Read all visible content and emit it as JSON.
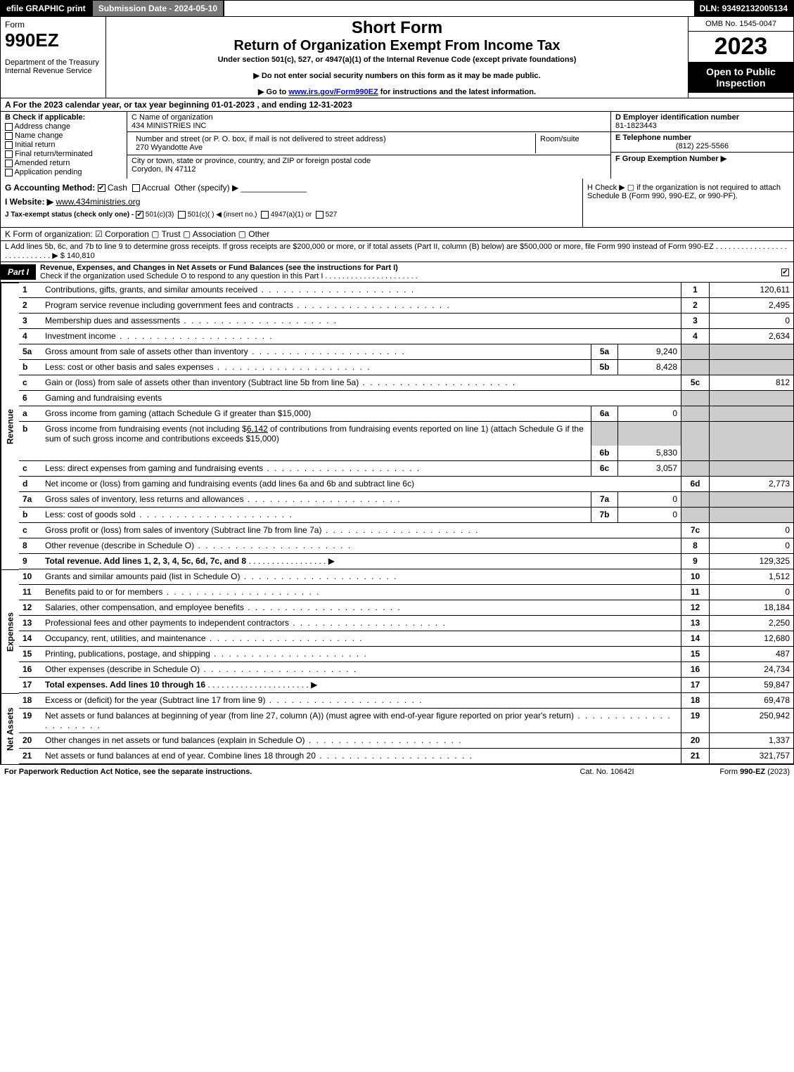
{
  "top": {
    "efile": "efile GRAPHIC print",
    "submission": "Submission Date - 2024-05-10",
    "dln": "DLN: 93492132005134"
  },
  "header": {
    "form": "Form",
    "formnum": "990EZ",
    "dept": "Department of the Treasury\nInternal Revenue Service",
    "short": "Short Form",
    "ret": "Return of Organization Exempt From Income Tax",
    "sub": "Under section 501(c), 527, or 4947(a)(1) of the Internal Revenue Code (except private foundations)",
    "arrow1": "▶ Do not enter social security numbers on this form as it may be made public.",
    "arrow2_pre": "▶ Go to ",
    "arrow2_link": "www.irs.gov/Form990EZ",
    "arrow2_post": " for instructions and the latest information.",
    "omb": "OMB No. 1545-0047",
    "year": "2023",
    "open": "Open to Public Inspection"
  },
  "A": "A  For the 2023 calendar year, or tax year beginning 01-01-2023 , and ending 12-31-2023",
  "B": {
    "title": "B  Check if applicable:",
    "items": [
      "Address change",
      "Name change",
      "Initial return",
      "Final return/terminated",
      "Amended return",
      "Application pending"
    ]
  },
  "C": {
    "label": "C Name of organization",
    "name": "434 MINISTRIES INC",
    "street_label": "Number and street (or P. O. box, if mail is not delivered to street address)",
    "street": "270 Wyandotte Ave",
    "room_label": "Room/suite",
    "city_label": "City or town, state or province, country, and ZIP or foreign postal code",
    "city": "Corydon, IN  47112"
  },
  "D": {
    "label": "D Employer identification number",
    "val": "81-1823443"
  },
  "E": {
    "label": "E Telephone number",
    "val": "(812) 225-5566"
  },
  "F": {
    "label": "F Group Exemption Number   ▶",
    "val": ""
  },
  "G": {
    "label": "G Accounting Method:",
    "cash": "Cash",
    "accrual": "Accrual",
    "other": "Other (specify) ▶",
    "website_label": "I Website: ▶",
    "website": "www.434ministries.org",
    "J_label": "J Tax-exempt status (check only one) -",
    "J_501c3": "501(c)(3)",
    "J_501c": "501(c)(   ) ◀ (insert no.)",
    "J_4947": "4947(a)(1) or",
    "J_527": "527"
  },
  "H": "H  Check ▶  ▢  if the organization is not required to attach Schedule B (Form 990, 990-EZ, or 990-PF).",
  "K": "K Form of organization:   ☑ Corporation   ▢ Trust   ▢ Association   ▢ Other",
  "L": {
    "text": "L Add lines 5b, 6c, and 7b to line 9 to determine gross receipts. If gross receipts are $200,000 or more, or if total assets (Part II, column (B) below) are $500,000 or more, file Form 990 instead of Form 990-EZ  . . . . . . . . . . . . . . . . . . . . . . . . . . . . ▶ $",
    "val": "140,810"
  },
  "part1": {
    "tab": "Part I",
    "title": "Revenue, Expenses, and Changes in Net Assets or Fund Balances (see the instructions for Part I)",
    "schO": "Check if the organization used Schedule O to respond to any question in this Part I  . . . . . . . . . . . . . . . . . . . . . .",
    "schO_checked": true
  },
  "sections": {
    "revenue": "Revenue",
    "expenses": "Expenses",
    "netassets": "Net Assets"
  },
  "lines": {
    "1": {
      "desc": "Contributions, gifts, grants, and similar amounts received",
      "out": "120,611"
    },
    "2": {
      "desc": "Program service revenue including government fees and contracts",
      "out": "2,495"
    },
    "3": {
      "desc": "Membership dues and assessments",
      "out": "0"
    },
    "4": {
      "desc": "Investment income",
      "out": "2,634"
    },
    "5a": {
      "desc": "Gross amount from sale of assets other than inventory",
      "in": "9,240"
    },
    "5b": {
      "desc": "Less: cost or other basis and sales expenses",
      "in": "8,428"
    },
    "5c": {
      "desc": "Gain or (loss) from sale of assets other than inventory (Subtract line 5b from line 5a)",
      "out": "812"
    },
    "6": {
      "desc": "Gaming and fundraising events"
    },
    "6a": {
      "desc": "Gross income from gaming (attach Schedule G if greater than $15,000)",
      "in": "0"
    },
    "6b_desc1": "Gross income from fundraising events (not including $",
    "6b_amt": "6,142",
    "6b_desc2": " of contributions from fundraising events reported on line 1) (attach Schedule G if the sum of such gross income and contributions exceeds $15,000)",
    "6b": {
      "in": "5,830"
    },
    "6c": {
      "desc": "Less: direct expenses from gaming and fundraising events",
      "in": "3,057"
    },
    "6d": {
      "desc": "Net income or (loss) from gaming and fundraising events (add lines 6a and 6b and subtract line 6c)",
      "out": "2,773"
    },
    "7a": {
      "desc": "Gross sales of inventory, less returns and allowances",
      "in": "0"
    },
    "7b": {
      "desc": "Less: cost of goods sold",
      "in": "0"
    },
    "7c": {
      "desc": "Gross profit or (loss) from sales of inventory (Subtract line 7b from line 7a)",
      "out": "0"
    },
    "8": {
      "desc": "Other revenue (describe in Schedule O)",
      "out": "0"
    },
    "9": {
      "desc": "Total revenue. Add lines 1, 2, 3, 4, 5c, 6d, 7c, and 8",
      "out": "129,325"
    },
    "10": {
      "desc": "Grants and similar amounts paid (list in Schedule O)",
      "out": "1,512"
    },
    "11": {
      "desc": "Benefits paid to or for members",
      "out": "0"
    },
    "12": {
      "desc": "Salaries, other compensation, and employee benefits",
      "out": "18,184"
    },
    "13": {
      "desc": "Professional fees and other payments to independent contractors",
      "out": "2,250"
    },
    "14": {
      "desc": "Occupancy, rent, utilities, and maintenance",
      "out": "12,680"
    },
    "15": {
      "desc": "Printing, publications, postage, and shipping",
      "out": "487"
    },
    "16": {
      "desc": "Other expenses (describe in Schedule O)",
      "out": "24,734"
    },
    "17": {
      "desc": "Total expenses. Add lines 10 through 16",
      "out": "59,847"
    },
    "18": {
      "desc": "Excess or (deficit) for the year (Subtract line 17 from line 9)",
      "out": "69,478"
    },
    "19": {
      "desc": "Net assets or fund balances at beginning of year (from line 27, column (A)) (must agree with end-of-year figure reported on prior year's return)",
      "out": "250,942"
    },
    "20": {
      "desc": "Other changes in net assets or fund balances (explain in Schedule O)",
      "out": "1,337"
    },
    "21": {
      "desc": "Net assets or fund balances at end of year. Combine lines 18 through 20",
      "out": "321,757"
    }
  },
  "footer": {
    "left": "For Paperwork Reduction Act Notice, see the separate instructions.",
    "mid": "Cat. No. 10642I",
    "right": "Form 990-EZ (2023)"
  }
}
